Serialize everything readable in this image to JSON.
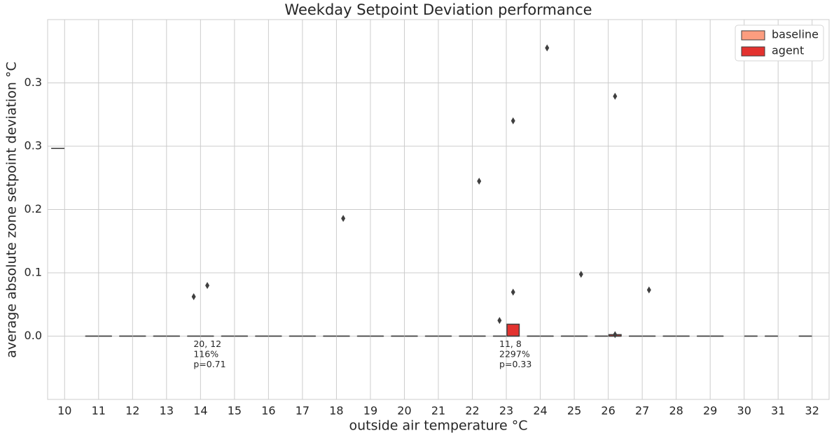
{
  "chart_data": {
    "type": "box",
    "title": "Weekday Setpoint Deviation performance",
    "x_label": "outside air temperature °C",
    "y_label": "average absolute zone setpoint deviation °C",
    "categories": [
      "10",
      "11",
      "12",
      "13",
      "14",
      "15",
      "16",
      "17",
      "18",
      "19",
      "20",
      "21",
      "22",
      "23",
      "24",
      "25",
      "26",
      "27",
      "28",
      "29",
      "30",
      "31",
      "32"
    ],
    "ylim": [
      -0.085,
      0.425
    ],
    "yticks": [
      {
        "value": 0,
        "label": "0.0"
      },
      {
        "value": 0.085,
        "label": "0.1"
      },
      {
        "value": 0.17,
        "label": "0.2"
      },
      {
        "value": 0.255,
        "label": "0.3"
      },
      {
        "value": 0.34,
        "label": "0.3"
      }
    ],
    "grid": true,
    "legend": "upper right",
    "series": [
      {
        "name": "baseline",
        "color": "#fc9d7f",
        "q1": [
          0.252,
          0,
          0,
          0,
          0,
          0,
          0,
          0,
          0,
          0,
          0,
          0,
          0,
          0,
          0,
          0,
          0,
          0,
          0,
          0,
          null,
          0,
          0
        ],
        "median": [
          0.252,
          0,
          0,
          0,
          0,
          0,
          0,
          0,
          0,
          0,
          0,
          0,
          0,
          0,
          0,
          0,
          0,
          0,
          0,
          0,
          null,
          0,
          0
        ],
        "q3": [
          0.252,
          0,
          0,
          0,
          0,
          0,
          0,
          0,
          0,
          0,
          0,
          0,
          0,
          0,
          0,
          0,
          0,
          0,
          0,
          0,
          null,
          0,
          0
        ],
        "outliers": [
          [],
          [],
          [],
          [],
          [
            0.053
          ],
          [],
          [],
          [],
          [],
          [],
          [],
          [],
          [],
          [
            0.021
          ],
          [],
          [],
          [],
          [],
          [],
          [],
          [],
          [],
          []
        ]
      },
      {
        "name": "agent",
        "color": "#e3322f",
        "q1": [
          null,
          0,
          0,
          0,
          0,
          0,
          0,
          0,
          0,
          0,
          0,
          0,
          0,
          0,
          0,
          0,
          0,
          0,
          0,
          0,
          0,
          null,
          null
        ],
        "median": [
          null,
          0,
          0,
          0,
          0,
          0,
          0,
          0,
          0,
          0,
          0,
          0,
          0,
          0,
          0,
          0,
          0,
          0,
          0,
          0,
          0,
          null,
          null
        ],
        "q3": [
          null,
          0,
          0,
          0,
          0,
          0,
          0,
          0,
          0,
          0,
          0,
          0,
          0,
          0.016,
          0,
          0,
          0.002,
          0,
          0,
          0,
          0,
          null,
          null
        ],
        "outliers": [
          [],
          [],
          [],
          [],
          [
            0.068
          ],
          [],
          [],
          [],
          [
            0.158
          ],
          [],
          [],
          [],
          [
            0.208
          ],
          [
            0.289,
            0.059
          ],
          [
            0.387
          ],
          [
            0.083
          ],
          [
            0.322,
            0.002
          ],
          [
            0.062
          ],
          [],
          [],
          [],
          [],
          []
        ]
      }
    ],
    "annotations": [
      {
        "category": "14",
        "lines": [
          "20, 12",
          "116%",
          "p=0.71"
        ]
      },
      {
        "category": "23",
        "lines": [
          "11, 8",
          "2297%",
          "p=0.33"
        ]
      }
    ]
  }
}
